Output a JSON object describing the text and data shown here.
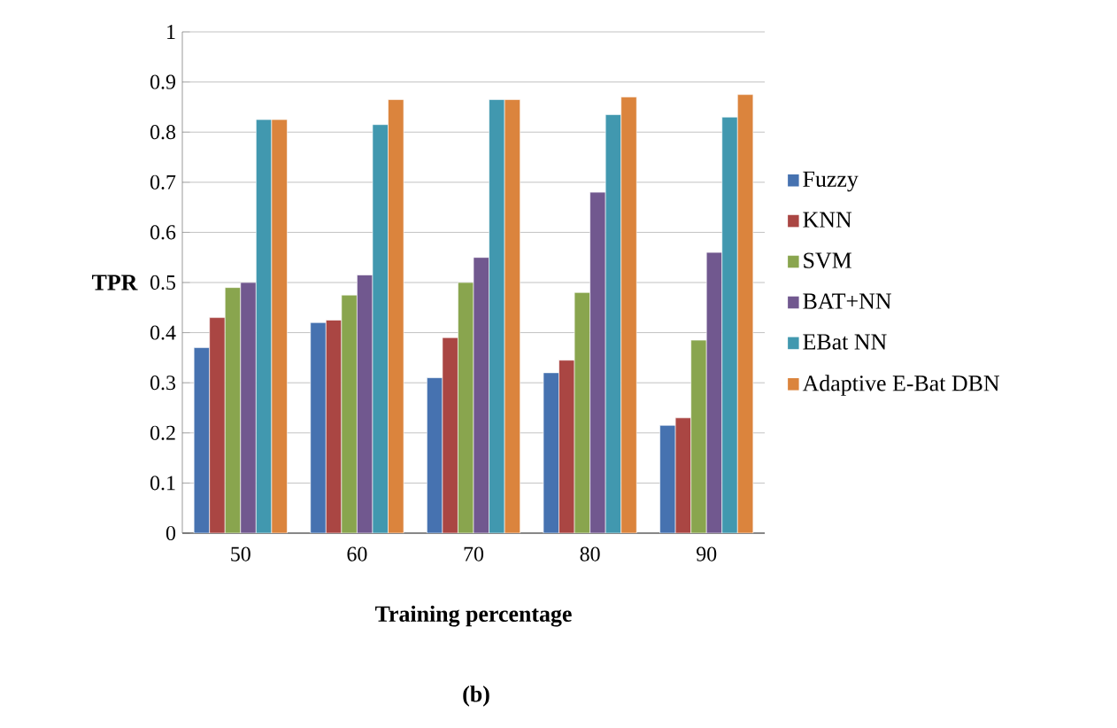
{
  "chart_data": {
    "type": "bar",
    "xlabel": "Training percentage",
    "ylabel": "TPR",
    "categories": [
      "50",
      "60",
      "70",
      "80",
      "90"
    ],
    "series": [
      {
        "name": "Fuzzy",
        "color": "#4672b0",
        "values": [
          0.37,
          0.42,
          0.31,
          0.32,
          0.215
        ]
      },
      {
        "name": "KNN",
        "color": "#aa4643",
        "values": [
          0.43,
          0.425,
          0.39,
          0.345,
          0.23
        ]
      },
      {
        "name": "SVM",
        "color": "#89a54e",
        "values": [
          0.49,
          0.475,
          0.5,
          0.48,
          0.385
        ]
      },
      {
        "name": "BAT+NN",
        "color": "#71588f",
        "values": [
          0.5,
          0.515,
          0.55,
          0.68,
          0.56
        ]
      },
      {
        "name": "EBat NN",
        "color": "#4198af",
        "values": [
          0.825,
          0.815,
          0.865,
          0.835,
          0.83
        ]
      },
      {
        "name": "Adaptive E-Bat DBN",
        "color": "#db843d",
        "values": [
          0.825,
          0.865,
          0.865,
          0.87,
          0.875
        ]
      }
    ],
    "ylim": [
      0,
      1
    ],
    "yticks": [
      0,
      0.1,
      0.2,
      0.3,
      0.4,
      0.5,
      0.6,
      0.7,
      0.8,
      0.9,
      1
    ],
    "grid": "y",
    "legend": "right",
    "annotations": [
      "(b)"
    ]
  }
}
